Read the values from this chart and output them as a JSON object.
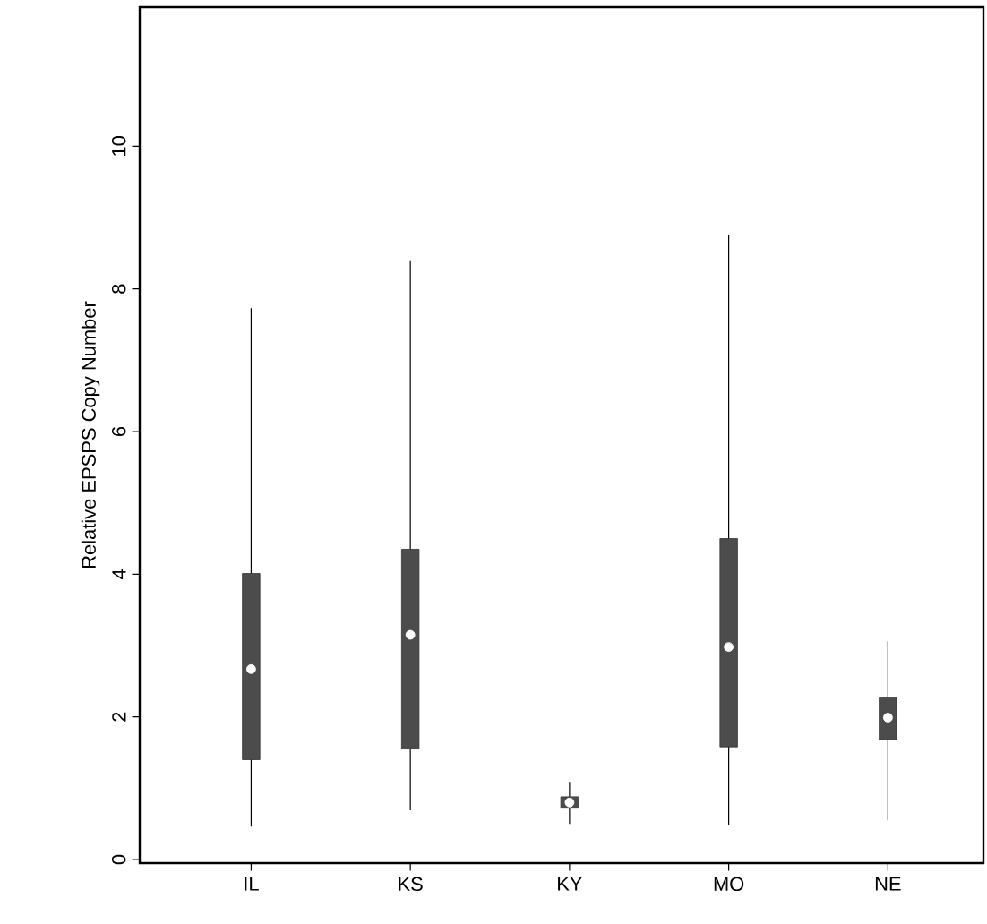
{
  "chart_data": {
    "type": "box",
    "ylabel": "Relative EPSPS Copy Number",
    "categories": [
      "IL",
      "KS",
      "KY",
      "MO",
      "NE"
    ],
    "boxes": [
      {
        "low": 0.46,
        "q1": 1.4,
        "median": 2.67,
        "q3": 4.01,
        "high": 7.73
      },
      {
        "low": 0.69,
        "q1": 1.55,
        "median": 3.15,
        "q3": 4.35,
        "high": 8.4
      },
      {
        "low": 0.5,
        "q1": 0.72,
        "median": 0.8,
        "q3": 0.88,
        "high": 1.09
      },
      {
        "low": 0.49,
        "q1": 1.58,
        "median": 2.98,
        "q3": 4.5,
        "high": 8.75
      },
      {
        "low": 0.55,
        "q1": 1.68,
        "median": 1.99,
        "q3": 2.27,
        "high": 3.06
      }
    ],
    "ylim": [
      -0.05,
      11.95
    ],
    "yticks": [
      0,
      2,
      4,
      6,
      8,
      10
    ]
  }
}
